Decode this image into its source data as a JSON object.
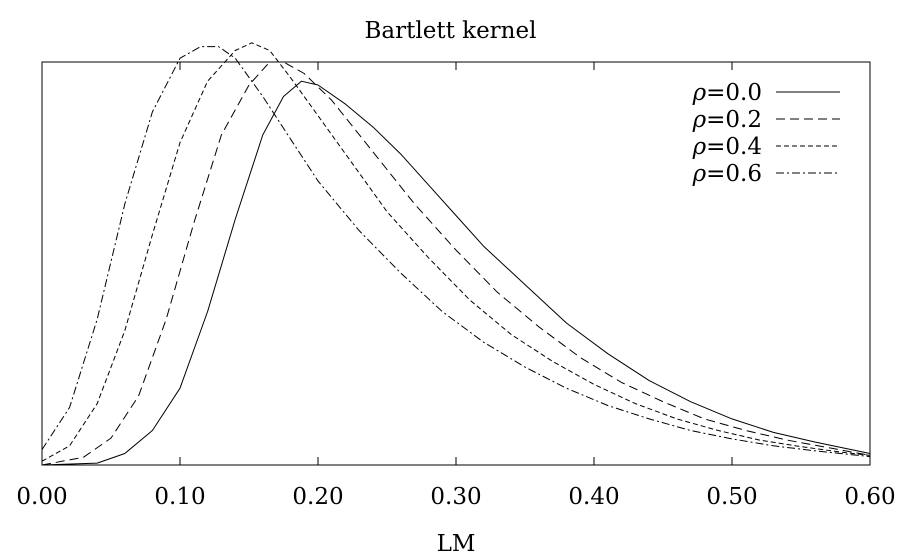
{
  "chart_data": {
    "type": "line",
    "title": "Bartlett kernel",
    "xlabel": "LM",
    "ylabel": "",
    "xlim": [
      0.0,
      0.6
    ],
    "ylim": [
      0,
      1.05
    ],
    "xticks": [
      "0.00",
      "0.10",
      "0.20",
      "0.30",
      "0.40",
      "0.50",
      "0.60"
    ],
    "y_tick_labels_shown": false,
    "grid": false,
    "legend_position": "top-right",
    "series": [
      {
        "name": "ρ=0.0",
        "symbol": "ρ",
        "value_text": "=0.0",
        "line_style": "solid",
        "x": [
          0.0,
          0.04,
          0.06,
          0.08,
          0.1,
          0.12,
          0.14,
          0.16,
          0.175,
          0.188,
          0.2,
          0.22,
          0.24,
          0.26,
          0.28,
          0.3,
          0.32,
          0.35,
          0.38,
          0.41,
          0.44,
          0.47,
          0.5,
          0.53,
          0.56,
          0.6
        ],
        "y": [
          0.0,
          0.005,
          0.03,
          0.09,
          0.2,
          0.4,
          0.64,
          0.86,
          0.96,
          1.0,
          0.99,
          0.94,
          0.88,
          0.81,
          0.73,
          0.65,
          0.57,
          0.47,
          0.37,
          0.29,
          0.22,
          0.165,
          0.12,
          0.085,
          0.06,
          0.03
        ]
      },
      {
        "name": "ρ=0.2",
        "symbol": "ρ",
        "value_text": "=0.2",
        "line_style": "dashed",
        "x": [
          0.0,
          0.03,
          0.05,
          0.07,
          0.09,
          0.11,
          0.13,
          0.15,
          0.165,
          0.175,
          0.19,
          0.21,
          0.23,
          0.25,
          0.27,
          0.3,
          0.33,
          0.36,
          0.39,
          0.42,
          0.45,
          0.48,
          0.51,
          0.54,
          0.57,
          0.6
        ],
        "y": [
          0.0,
          0.02,
          0.07,
          0.18,
          0.38,
          0.63,
          0.86,
          0.99,
          1.05,
          1.05,
          1.02,
          0.95,
          0.86,
          0.77,
          0.68,
          0.56,
          0.45,
          0.36,
          0.28,
          0.215,
          0.165,
          0.12,
          0.09,
          0.065,
          0.045,
          0.025
        ]
      },
      {
        "name": "ρ=0.4",
        "symbol": "ρ",
        "value_text": "=0.4",
        "line_style": "dotted-dash",
        "x": [
          0.0,
          0.02,
          0.04,
          0.06,
          0.08,
          0.1,
          0.12,
          0.14,
          0.152,
          0.165,
          0.18,
          0.2,
          0.22,
          0.25,
          0.28,
          0.31,
          0.34,
          0.37,
          0.4,
          0.43,
          0.46,
          0.49,
          0.52,
          0.55,
          0.58,
          0.6
        ],
        "y": [
          0.01,
          0.05,
          0.16,
          0.35,
          0.6,
          0.84,
          1.0,
          1.08,
          1.1,
          1.08,
          1.01,
          0.91,
          0.81,
          0.66,
          0.54,
          0.43,
          0.34,
          0.27,
          0.21,
          0.16,
          0.12,
          0.09,
          0.065,
          0.048,
          0.033,
          0.025
        ]
      },
      {
        "name": "ρ=0.6",
        "symbol": "ρ",
        "value_text": "=0.6",
        "line_style": "dash-dot",
        "x": [
          0.0,
          0.02,
          0.04,
          0.06,
          0.08,
          0.1,
          0.115,
          0.128,
          0.14,
          0.16,
          0.18,
          0.2,
          0.23,
          0.26,
          0.29,
          0.32,
          0.35,
          0.38,
          0.41,
          0.44,
          0.47,
          0.5,
          0.53,
          0.56,
          0.6
        ],
        "y": [
          0.04,
          0.15,
          0.38,
          0.68,
          0.92,
          1.06,
          1.09,
          1.09,
          1.06,
          0.96,
          0.85,
          0.74,
          0.61,
          0.5,
          0.4,
          0.32,
          0.255,
          0.2,
          0.155,
          0.12,
          0.09,
          0.068,
          0.05,
          0.037,
          0.022
        ]
      }
    ]
  }
}
